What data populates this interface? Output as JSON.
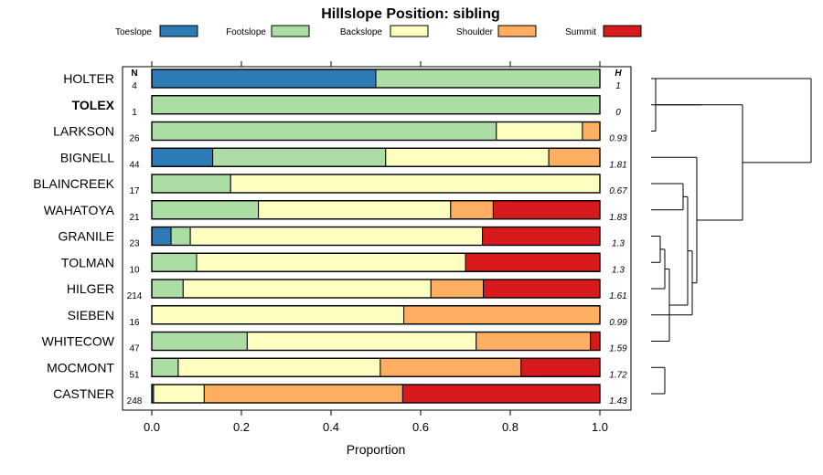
{
  "chart_data": {
    "type": "bar",
    "stacked": true,
    "orientation": "horizontal",
    "title": "Hillslope Position: sibling",
    "xlabel": "Proportion",
    "xlim": [
      0,
      1
    ],
    "xticks": [
      "0.0",
      "0.2",
      "0.4",
      "0.6",
      "0.8",
      "1.0"
    ],
    "xtick_values": [
      0,
      0.2,
      0.4,
      0.6,
      0.8,
      1.0
    ],
    "n_header": "N",
    "h_header": "H",
    "categories": [
      "Toeslope",
      "Footslope",
      "Backslope",
      "Shoulder",
      "Summit"
    ],
    "colors": [
      "#2C7BB6",
      "#ABDDA4",
      "#FFFFBF",
      "#FDAE61",
      "#D7191C"
    ],
    "rows": [
      {
        "name": "HOLTER",
        "n": "4",
        "h": "1",
        "bold": false,
        "values": [
          0.5,
          0.5,
          0,
          0,
          0
        ]
      },
      {
        "name": "TOLEX",
        "n": "1",
        "h": "0",
        "bold": true,
        "values": [
          0,
          1.0,
          0,
          0,
          0
        ]
      },
      {
        "name": "LARKSON",
        "n": "26",
        "h": "0.93",
        "bold": false,
        "values": [
          0,
          0.769,
          0.192,
          0.039,
          0
        ]
      },
      {
        "name": "BIGNELL",
        "n": "44",
        "h": "1.81",
        "bold": false,
        "values": [
          0.136,
          0.386,
          0.364,
          0.114,
          0
        ]
      },
      {
        "name": "BLAINCREEK",
        "n": "17",
        "h": "0.67",
        "bold": false,
        "values": [
          0,
          0.176,
          0.824,
          0,
          0
        ]
      },
      {
        "name": "WAHATOYA",
        "n": "21",
        "h": "1.83",
        "bold": false,
        "values": [
          0,
          0.238,
          0.429,
          0.095,
          0.238
        ]
      },
      {
        "name": "GRANILE",
        "n": "23",
        "h": "1.3",
        "bold": false,
        "values": [
          0.043,
          0.043,
          0.652,
          0,
          0.262
        ]
      },
      {
        "name": "TOLMAN",
        "n": "10",
        "h": "1.3",
        "bold": false,
        "values": [
          0,
          0.1,
          0.6,
          0,
          0.3
        ]
      },
      {
        "name": "HILGER",
        "n": "214",
        "h": "1.61",
        "bold": false,
        "values": [
          0,
          0.07,
          0.553,
          0.117,
          0.26
        ]
      },
      {
        "name": "SIEBEN",
        "n": "16",
        "h": "0.99",
        "bold": false,
        "values": [
          0,
          0,
          0.5625,
          0.4375,
          0
        ]
      },
      {
        "name": "WHITECOW",
        "n": "47",
        "h": "1.59",
        "bold": false,
        "values": [
          0,
          0.213,
          0.511,
          0.255,
          0.021
        ]
      },
      {
        "name": "MOCMONT",
        "n": "51",
        "h": "1.72",
        "bold": false,
        "values": [
          0,
          0.059,
          0.451,
          0.314,
          0.176
        ]
      },
      {
        "name": "CASTNER",
        "n": "248",
        "h": "1.43",
        "bold": false,
        "values": [
          0.004,
          0,
          0.113,
          0.443,
          0.44
        ]
      }
    ],
    "dendrogram": {
      "merges": [
        [
          12,
          13,
          0.3
        ],
        [
          3,
          1,
          0.1
        ],
        [
          8,
          7,
          0.2
        ],
        [
          -3,
          9,
          0.3
        ],
        [
          11,
          -4,
          0.4
        ],
        [
          5,
          6,
          0.7
        ],
        [
          -6,
          -5,
          0.8
        ],
        [
          -7,
          10,
          0.9
        ],
        [
          -8,
          4,
          1.0
        ],
        [
          2,
          -2,
          1.1
        ],
        [
          -10,
          -9,
          2.0
        ],
        [
          -11,
          1,
          3.5
        ]
      ],
      "leaf_order": [
        1,
        2,
        3,
        4,
        5,
        6,
        7,
        8,
        9,
        10,
        11,
        12,
        13
      ]
    }
  }
}
